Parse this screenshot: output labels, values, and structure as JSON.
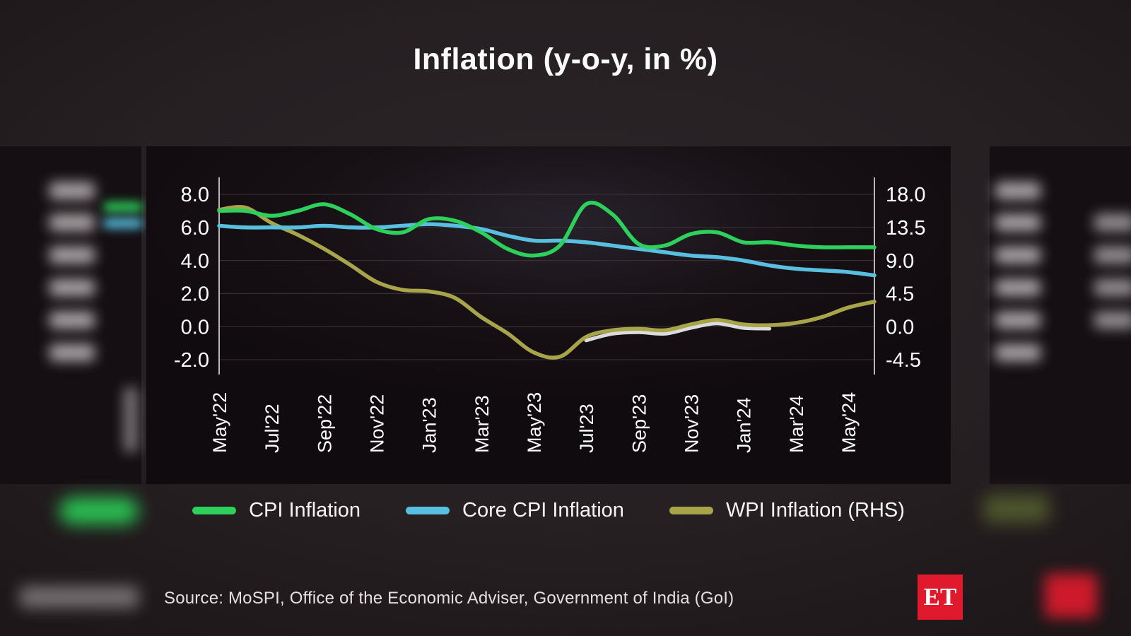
{
  "title": "Inflation (y-o-y, in %)",
  "source": "Source: MoSPI, Office of the Economic Adviser, Government of India (GoI)",
  "logo_text": "ET",
  "colors": {
    "cpi_green": "#2ed05c",
    "core_blue": "#58bfe0",
    "wpi_olive": "#a8a44a",
    "logo_red": "#e0192c",
    "panel_bg": "#140f12",
    "grid": "#3b3539",
    "axis": "#d8d4d6",
    "text": "#ffffff"
  },
  "legend": {
    "items": [
      {
        "label": "CPI Inflation",
        "color": "#2ed05c"
      },
      {
        "label": "Core CPI Inflation",
        "color": "#58bfe0"
      },
      {
        "label": "WPI Inflation (RHS)",
        "color": "#a8a44a"
      }
    ]
  },
  "chart_data": {
    "type": "line",
    "title": "Inflation (y-o-y, in %)",
    "x": [
      "May'22",
      "Jun'22",
      "Jul'22",
      "Aug'22",
      "Sep'22",
      "Oct'22",
      "Nov'22",
      "Dec'22",
      "Jan'23",
      "Feb'23",
      "Mar'23",
      "Apr'23",
      "May'23",
      "Jun'23",
      "Jul'23",
      "Aug'23",
      "Sep'23",
      "Oct'23",
      "Nov'23",
      "Dec'23",
      "Jan'24",
      "Feb'24",
      "Mar'24",
      "Apr'24",
      "May'24",
      "Jun'24"
    ],
    "x_tick_labels": [
      "May'22",
      "Jul'22",
      "Sep'22",
      "Nov'22",
      "Jan'23",
      "Mar'23",
      "May'23",
      "Jul'23",
      "Sep'23",
      "Nov'23",
      "Jan'24",
      "Mar'24",
      "May'24"
    ],
    "left_axis": {
      "ticks": [
        8.0,
        6.0,
        4.0,
        2.0,
        0.0,
        -2.0
      ],
      "range": [
        -2.0,
        8.0
      ]
    },
    "right_axis": {
      "ticks": [
        18.0,
        13.5,
        9.0,
        4.5,
        0.0,
        -4.5
      ],
      "range": [
        -4.5,
        18.0
      ],
      "note": "RHS scale for WPI"
    },
    "grid": true,
    "legend_position": "bottom",
    "series": [
      {
        "name": "CPI Inflation",
        "axis": "left",
        "color": "#2ed05c",
        "values": [
          7.0,
          7.0,
          6.7,
          7.0,
          7.4,
          6.8,
          5.9,
          5.7,
          6.5,
          6.4,
          5.7,
          4.7,
          4.3,
          4.9,
          7.4,
          6.8,
          5.0,
          4.9,
          5.6,
          5.7,
          5.1,
          5.1,
          4.9,
          4.8,
          4.8,
          4.8
        ]
      },
      {
        "name": "Core CPI Inflation",
        "axis": "left",
        "color": "#58bfe0",
        "values": [
          6.1,
          6.0,
          6.0,
          6.0,
          6.1,
          6.0,
          6.0,
          6.1,
          6.2,
          6.1,
          5.9,
          5.5,
          5.2,
          5.2,
          5.1,
          4.9,
          4.7,
          4.5,
          4.3,
          4.2,
          4.0,
          3.7,
          3.5,
          3.4,
          3.3,
          3.1
        ]
      },
      {
        "name": "WPI Inflation (RHS)",
        "axis": "right",
        "color": "#a8a44a",
        "values": [
          15.9,
          16.2,
          14.1,
          12.5,
          10.6,
          8.4,
          6.1,
          5.0,
          4.8,
          3.9,
          1.3,
          -0.9,
          -3.5,
          -4.1,
          -1.4,
          -0.5,
          -0.3,
          -0.5,
          0.3,
          0.9,
          0.3,
          0.2,
          0.5,
          1.3,
          2.6,
          3.4
        ]
      }
    ]
  }
}
